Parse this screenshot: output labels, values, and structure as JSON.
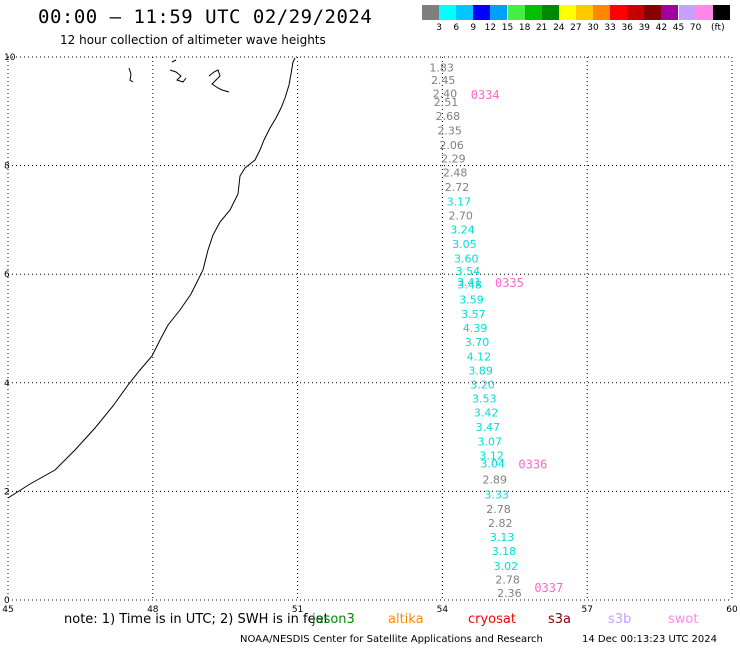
{
  "header": {
    "title": "00:00 – 11:59 UTC 02/29/2024",
    "subtitle": "12 hour collection of altimeter wave heights"
  },
  "colorbar": {
    "unit_label": "(ft)",
    "swatches": [
      {
        "color": "#7f7f7f",
        "label": ""
      },
      {
        "color": "#00ffff",
        "label": "3"
      },
      {
        "color": "#00c8ff",
        "label": "6"
      },
      {
        "color": "#0000ff",
        "label": "9"
      },
      {
        "color": "#00a0ff",
        "label": "12"
      },
      {
        "color": "#44ee44",
        "label": "15"
      },
      {
        "color": "#00c000",
        "label": "18"
      },
      {
        "color": "#008800",
        "label": "21"
      },
      {
        "color": "#ffff00",
        "label": "24"
      },
      {
        "color": "#ffc800",
        "label": "27"
      },
      {
        "color": "#ff8800",
        "label": "30"
      },
      {
        "color": "#ff0000",
        "label": "33"
      },
      {
        "color": "#c80000",
        "label": "36"
      },
      {
        "color": "#880000",
        "label": "39"
      },
      {
        "color": "#a000a0",
        "label": "42"
      },
      {
        "color": "#c8a0ff",
        "label": "45"
      },
      {
        "color": "#ff88e8",
        "label": "70"
      },
      {
        "color": "#000000",
        "label": ""
      }
    ]
  },
  "map": {
    "x_ticks": [
      "45",
      "48",
      "51",
      "54",
      "57",
      "60"
    ],
    "y_ticks": [
      "0",
      "2",
      "4",
      "6",
      "8",
      "10"
    ],
    "lon_range": [
      45,
      60
    ],
    "lat_range": [
      0,
      10
    ],
    "pass_labels": [
      {
        "text": "0334",
        "lat": 9.32
      },
      {
        "text": "0335",
        "lat": 5.86
      },
      {
        "text": "0336",
        "lat": 2.51
      },
      {
        "text": "0337",
        "lat": 0.24
      }
    ],
    "pass_label_color": "#ff66cc",
    "wave_heights": [
      {
        "value": "1.83",
        "lat": 9.81,
        "color": "#808080"
      },
      {
        "value": "2.45",
        "lat": 9.58,
        "color": "#808080"
      },
      {
        "value": "2.40",
        "lat": 9.33,
        "color": "#808080"
      },
      {
        "value": "2.51",
        "lat": 9.17,
        "color": "#808080"
      },
      {
        "value": "2.68",
        "lat": 8.91,
        "color": "#808080"
      },
      {
        "value": "2.35",
        "lat": 8.65,
        "color": "#808080"
      },
      {
        "value": "2.06",
        "lat": 8.38,
        "color": "#808080"
      },
      {
        "value": "2.29",
        "lat": 8.13,
        "color": "#808080"
      },
      {
        "value": "2.48",
        "lat": 7.87,
        "color": "#808080"
      },
      {
        "value": "2.72",
        "lat": 7.61,
        "color": "#808080"
      },
      {
        "value": "3.17",
        "lat": 7.34,
        "color": "#00dddd"
      },
      {
        "value": "2.70",
        "lat": 7.08,
        "color": "#808080"
      },
      {
        "value": "3.24",
        "lat": 6.82,
        "color": "#00dddd"
      },
      {
        "value": "3.05",
        "lat": 6.56,
        "color": "#00dddd"
      },
      {
        "value": "3.60",
        "lat": 6.29,
        "color": "#00dddd"
      },
      {
        "value": "3.54",
        "lat": 6.06,
        "color": "#00dddd"
      },
      {
        "value": "3.41",
        "lat": 5.86,
        "color": "#00dddd"
      },
      {
        "value": "3.48",
        "lat": 5.81,
        "color": "#00dddd"
      },
      {
        "value": "3.59",
        "lat": 5.53,
        "color": "#00dddd"
      },
      {
        "value": "3.57",
        "lat": 5.27,
        "color": "#00dddd"
      },
      {
        "value": "4.39",
        "lat": 5.01,
        "color": "#00dddd"
      },
      {
        "value": "3.70",
        "lat": 4.75,
        "color": "#00dddd"
      },
      {
        "value": "4.12",
        "lat": 4.48,
        "color": "#00dddd"
      },
      {
        "value": "3.89",
        "lat": 4.23,
        "color": "#00dddd"
      },
      {
        "value": "3.20",
        "lat": 3.97,
        "color": "#00dddd"
      },
      {
        "value": "3.53",
        "lat": 3.71,
        "color": "#00dddd"
      },
      {
        "value": "3.42",
        "lat": 3.45,
        "color": "#00dddd"
      },
      {
        "value": "3.47",
        "lat": 3.19,
        "color": "#00dddd"
      },
      {
        "value": "3.07",
        "lat": 2.92,
        "color": "#00dddd"
      },
      {
        "value": "3.12",
        "lat": 2.66,
        "color": "#00dddd"
      },
      {
        "value": "3.04",
        "lat": 2.51,
        "color": "#00dddd"
      },
      {
        "value": "2.89",
        "lat": 2.22,
        "color": "#808080"
      },
      {
        "value": "3.33",
        "lat": 1.94,
        "color": "#00dddd"
      },
      {
        "value": "2.78",
        "lat": 1.68,
        "color": "#808080"
      },
      {
        "value": "2.82",
        "lat": 1.42,
        "color": "#808080"
      },
      {
        "value": "3.13",
        "lat": 1.16,
        "color": "#00dddd"
      },
      {
        "value": "3.18",
        "lat": 0.9,
        "color": "#00dddd"
      },
      {
        "value": "3.02",
        "lat": 0.63,
        "color": "#00dddd"
      },
      {
        "value": "2.78",
        "lat": 0.38,
        "color": "#808080"
      },
      {
        "value": "2.36",
        "lat": 0.13,
        "color": "#808080"
      }
    ]
  },
  "footer": {
    "note_prefix": "note:  1) Time is in UTC;  2) SWH is in feet",
    "satellites": [
      {
        "name": "jason3",
        "color": "#008800"
      },
      {
        "name": "altika",
        "color": "#ff8800"
      },
      {
        "name": "cryosat",
        "color": "#ff0000"
      },
      {
        "name": "s3a",
        "color": "#880000"
      },
      {
        "name": "s3b",
        "color": "#c8a0ff"
      },
      {
        "name": "swot",
        "color": "#ff88e8"
      }
    ],
    "credit": "NOAA/NESDIS Center for Satellite Applications and Research",
    "timestamp": "14 Dec 00:13:23 UTC 2024"
  }
}
